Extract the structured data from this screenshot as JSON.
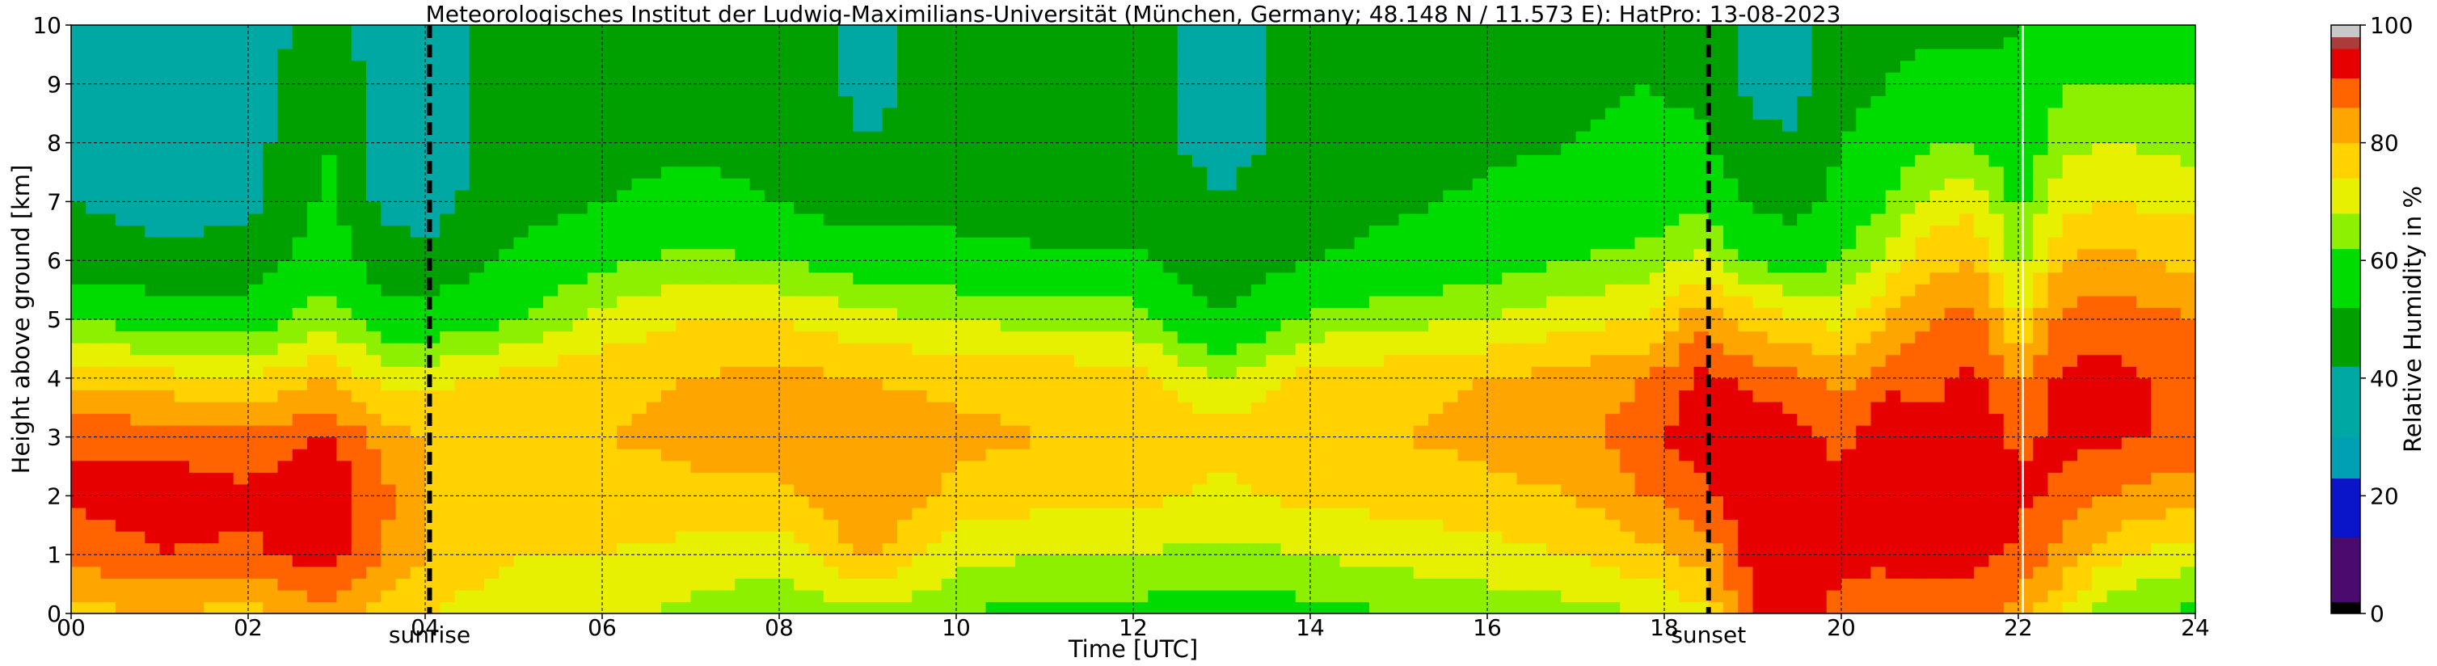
{
  "chart_data": {
    "type": "heatmap",
    "title": "Meteorologisches Institut der Ludwig-Maximilians-Universität (München, Germany; 48.148 N / 11.573 E):    HatPro: 13-08-2023",
    "xlabel": "Time [UTC]",
    "ylabel": "Height above ground [km]",
    "xlim": [
      0,
      24
    ],
    "ylim": [
      0,
      10
    ],
    "x_ticks": [
      "00",
      "02",
      "04",
      "06",
      "08",
      "10",
      "12",
      "14",
      "16",
      "18",
      "20",
      "22",
      "24"
    ],
    "y_ticks": [
      "0",
      "1",
      "2",
      "3",
      "4",
      "5",
      "6",
      "7",
      "8",
      "9",
      "10"
    ],
    "grid": true,
    "colorbar": {
      "label": "Relative Humidity in %",
      "range": [
        0,
        100
      ],
      "ticks": [
        "0",
        "20",
        "40",
        "60",
        "80",
        "100"
      ],
      "levels": [
        {
          "from": 0,
          "to": 2,
          "color": "#000000"
        },
        {
          "from": 2,
          "to": 13,
          "color": "#4a0a6e"
        },
        {
          "from": 13,
          "to": 23,
          "color": "#0a14c8"
        },
        {
          "from": 23,
          "to": 30,
          "color": "#00a0b4"
        },
        {
          "from": 30,
          "to": 42,
          "color": "#00a8a4"
        },
        {
          "from": 42,
          "to": 52,
          "color": "#00a000"
        },
        {
          "from": 52,
          "to": 62,
          "color": "#00dc00"
        },
        {
          "from": 62,
          "to": 68,
          "color": "#8cf000"
        },
        {
          "from": 68,
          "to": 74,
          "color": "#e6f000"
        },
        {
          "from": 74,
          "to": 80,
          "color": "#ffd200"
        },
        {
          "from": 80,
          "to": 86,
          "color": "#ffa500"
        },
        {
          "from": 86,
          "to": 91,
          "color": "#ff6400"
        },
        {
          "from": 91,
          "to": 96,
          "color": "#e60000"
        },
        {
          "from": 96,
          "to": 98,
          "color": "#aa3c3c"
        },
        {
          "from": 98,
          "to": 100,
          "color": "#c8c8c8"
        }
      ]
    },
    "events": [
      {
        "label": "sunrise",
        "time": 4.05
      },
      {
        "label": "sunset",
        "time": 18.5
      }
    ],
    "data_gap_time": 22.05,
    "rh_profiles": [
      {
        "time": 0.0,
        "rh": [
          78,
          88,
          92,
          90,
          78,
          62,
          48,
          42,
          40,
          38,
          38
        ]
      },
      {
        "time": 1.0,
        "rh": [
          80,
          91,
          93,
          90,
          76,
          58,
          44,
          38,
          36,
          36,
          36
        ]
      },
      {
        "time": 2.0,
        "rh": [
          78,
          90,
          92,
          88,
          74,
          58,
          46,
          40,
          38,
          38,
          38
        ]
      },
      {
        "time": 2.9,
        "rh": [
          84,
          94,
          95,
          92,
          80,
          66,
          58,
          54,
          52,
          50,
          44
        ]
      },
      {
        "time": 3.5,
        "rh": [
          76,
          86,
          88,
          84,
          72,
          58,
          46,
          40,
          38,
          38,
          38
        ]
      },
      {
        "time": 4.0,
        "rh": [
          74,
          80,
          80,
          80,
          72,
          56,
          44,
          38,
          38,
          38,
          40
        ]
      },
      {
        "time": 5.0,
        "rh": [
          70,
          74,
          78,
          80,
          76,
          62,
          54,
          48,
          46,
          46,
          44
        ]
      },
      {
        "time": 6.0,
        "rh": [
          70,
          74,
          76,
          80,
          78,
          70,
          60,
          52,
          48,
          46,
          46
        ]
      },
      {
        "time": 7.0,
        "rh": [
          66,
          72,
          78,
          82,
          80,
          74,
          64,
          56,
          50,
          48,
          48
        ]
      },
      {
        "time": 8.0,
        "rh": [
          64,
          70,
          78,
          84,
          82,
          74,
          62,
          52,
          48,
          46,
          46
        ]
      },
      {
        "time": 9.0,
        "rh": [
          66,
          82,
          86,
          84,
          80,
          70,
          58,
          46,
          42,
          40,
          40
        ]
      },
      {
        "time": 10.0,
        "rh": [
          62,
          70,
          78,
          82,
          78,
          68,
          56,
          48,
          46,
          46,
          46
        ]
      },
      {
        "time": 11.0,
        "rh": [
          60,
          68,
          76,
          80,
          78,
          66,
          54,
          46,
          44,
          44,
          44
        ]
      },
      {
        "time": 12.0,
        "rh": [
          60,
          68,
          76,
          80,
          76,
          66,
          54,
          46,
          44,
          44,
          44
        ]
      },
      {
        "time": 13.0,
        "rh": [
          58,
          66,
          72,
          76,
          68,
          52,
          46,
          42,
          40,
          40,
          40
        ]
      },
      {
        "time": 14.0,
        "rh": [
          60,
          68,
          76,
          80,
          76,
          64,
          52,
          46,
          44,
          44,
          44
        ]
      },
      {
        "time": 15.0,
        "rh": [
          62,
          70,
          76,
          80,
          78,
          66,
          56,
          50,
          48,
          48,
          48
        ]
      },
      {
        "time": 16.0,
        "rh": [
          64,
          72,
          78,
          82,
          80,
          68,
          58,
          54,
          50,
          48,
          48
        ]
      },
      {
        "time": 17.0,
        "rh": [
          66,
          74,
          80,
          84,
          82,
          72,
          62,
          56,
          52,
          50,
          50
        ]
      },
      {
        "time": 17.8,
        "rh": [
          68,
          78,
          86,
          90,
          86,
          74,
          64,
          58,
          54,
          52,
          52
        ]
      },
      {
        "time": 18.4,
        "rh": [
          72,
          82,
          90,
          93,
          92,
          84,
          70,
          60,
          54,
          50,
          48
        ]
      },
      {
        "time": 19.0,
        "rh": [
          92,
          93,
          94,
          94,
          90,
          78,
          62,
          50,
          44,
          40,
          40
        ]
      },
      {
        "time": 19.5,
        "rh": [
          92,
          93,
          93,
          92,
          88,
          74,
          58,
          48,
          42,
          40,
          40
        ]
      },
      {
        "time": 20.0,
        "rh": [
          90,
          92,
          92,
          90,
          84,
          72,
          62,
          56,
          52,
          48,
          44
        ]
      },
      {
        "time": 20.5,
        "rh": [
          86,
          93,
          94,
          94,
          90,
          80,
          70,
          62,
          56,
          52,
          48
        ]
      },
      {
        "time": 21.0,
        "rh": [
          88,
          93,
          94,
          92,
          90,
          86,
          78,
          70,
          62,
          56,
          50
        ]
      },
      {
        "time": 21.5,
        "rh": [
          88,
          93,
          94,
          94,
          92,
          88,
          80,
          72,
          62,
          54,
          50
        ]
      },
      {
        "time": 22.0,
        "rh": [
          84,
          90,
          92,
          90,
          86,
          74,
          66,
          60,
          56,
          54,
          52
        ]
      },
      {
        "time": 22.5,
        "rh": [
          74,
          84,
          90,
          92,
          92,
          88,
          80,
          72,
          66,
          62,
          60
        ]
      },
      {
        "time": 23.0,
        "rh": [
          64,
          76,
          86,
          92,
          92,
          90,
          82,
          74,
          68,
          62,
          60
        ]
      },
      {
        "time": 24.0,
        "rh": [
          60,
          70,
          82,
          90,
          90,
          86,
          78,
          72,
          66,
          62,
          60
        ]
      }
    ]
  }
}
